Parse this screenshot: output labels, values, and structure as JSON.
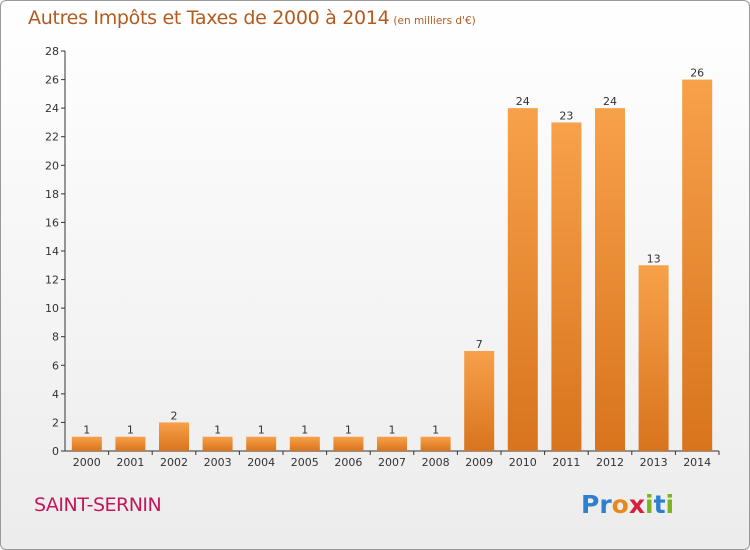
{
  "title": {
    "main": "Autres Impôts et Taxes de 2000 à 2014",
    "unit": "(en milliers d'€)"
  },
  "commune": "SAINT-SERNIN",
  "logo": {
    "text": "Proxiti",
    "letters": [
      "P",
      "r",
      "o",
      "x",
      "i",
      "t",
      "i"
    ],
    "colors": [
      "#2f7fd0",
      "#2f7fd0",
      "#e88a1a",
      "#d4213d",
      "#7ab51d",
      "#2f7fd0",
      "#7ab51d"
    ]
  },
  "colors": {
    "bar_top": "#f7a14a",
    "bar_bottom": "#d8741d",
    "title": "#b35b1f",
    "commune": "#c2185b"
  },
  "chart_data": {
    "type": "bar",
    "categories": [
      "2000",
      "2001",
      "2002",
      "2003",
      "2004",
      "2005",
      "2006",
      "2007",
      "2008",
      "2009",
      "2010",
      "2011",
      "2012",
      "2013",
      "2014"
    ],
    "values": [
      1,
      1,
      2,
      1,
      1,
      1,
      1,
      1,
      1,
      7,
      24,
      23,
      24,
      13,
      26
    ],
    "ylim": [
      0,
      28
    ],
    "yticks": [
      0,
      2,
      4,
      6,
      8,
      10,
      12,
      14,
      16,
      18,
      20,
      22,
      24,
      26,
      28
    ],
    "grid": false,
    "xlabel": "",
    "ylabel": ""
  }
}
